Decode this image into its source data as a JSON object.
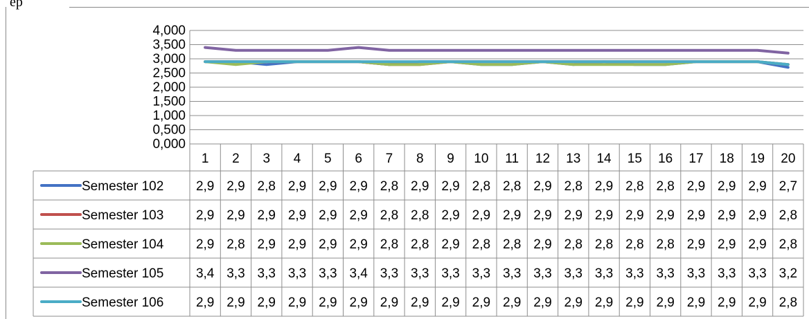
{
  "header_fragment": "ep",
  "chart_data": {
    "type": "line",
    "title": "",
    "xlabel": "",
    "ylabel": "",
    "ylim": [
      0,
      4
    ],
    "y_ticks": [
      "4,000",
      "3,500",
      "3,000",
      "2,500",
      "2,000",
      "1,500",
      "1,000",
      "0,500",
      "0,000"
    ],
    "grid": true,
    "legend": "data-table-below",
    "categories": [
      "1",
      "2",
      "3",
      "4",
      "5",
      "6",
      "7",
      "8",
      "9",
      "10",
      "11",
      "12",
      "13",
      "14",
      "15",
      "16",
      "17",
      "18",
      "19",
      "20"
    ],
    "series": [
      {
        "name": "Semester 102",
        "color": "#4472C4",
        "labels": [
          "2,9",
          "2,9",
          "2,8",
          "2,9",
          "2,9",
          "2,9",
          "2,8",
          "2,9",
          "2,9",
          "2,8",
          "2,8",
          "2,9",
          "2,8",
          "2,9",
          "2,8",
          "2,8",
          "2,9",
          "2,9",
          "2,9",
          "2,7"
        ],
        "values": [
          2.9,
          2.9,
          2.8,
          2.9,
          2.9,
          2.9,
          2.8,
          2.9,
          2.9,
          2.8,
          2.8,
          2.9,
          2.8,
          2.9,
          2.8,
          2.8,
          2.9,
          2.9,
          2.9,
          2.7
        ]
      },
      {
        "name": "Semester 103",
        "color": "#C0504D",
        "labels": [
          "2,9",
          "2,9",
          "2,9",
          "2,9",
          "2,9",
          "2,9",
          "2,8",
          "2,8",
          "2,9",
          "2,9",
          "2,9",
          "2,9",
          "2,9",
          "2,9",
          "2,9",
          "2,9",
          "2,9",
          "2,9",
          "2,9",
          "2,8"
        ],
        "values": [
          2.9,
          2.9,
          2.9,
          2.9,
          2.9,
          2.9,
          2.8,
          2.8,
          2.9,
          2.9,
          2.9,
          2.9,
          2.9,
          2.9,
          2.9,
          2.9,
          2.9,
          2.9,
          2.9,
          2.8
        ]
      },
      {
        "name": "Semester 104",
        "color": "#9BBB59",
        "labels": [
          "2,9",
          "2,8",
          "2,9",
          "2,9",
          "2,9",
          "2,9",
          "2,8",
          "2,8",
          "2,9",
          "2,8",
          "2,8",
          "2,9",
          "2,8",
          "2,8",
          "2,8",
          "2,8",
          "2,9",
          "2,9",
          "2,9",
          "2,8"
        ],
        "values": [
          2.9,
          2.8,
          2.9,
          2.9,
          2.9,
          2.9,
          2.8,
          2.8,
          2.9,
          2.8,
          2.8,
          2.9,
          2.8,
          2.8,
          2.8,
          2.8,
          2.9,
          2.9,
          2.9,
          2.8
        ]
      },
      {
        "name": "Semester 105",
        "color": "#8064A2",
        "labels": [
          "3,4",
          "3,3",
          "3,3",
          "3,3",
          "3,3",
          "3,4",
          "3,3",
          "3,3",
          "3,3",
          "3,3",
          "3,3",
          "3,3",
          "3,3",
          "3,3",
          "3,3",
          "3,3",
          "3,3",
          "3,3",
          "3,3",
          "3,2"
        ],
        "values": [
          3.4,
          3.3,
          3.3,
          3.3,
          3.3,
          3.4,
          3.3,
          3.3,
          3.3,
          3.3,
          3.3,
          3.3,
          3.3,
          3.3,
          3.3,
          3.3,
          3.3,
          3.3,
          3.3,
          3.2
        ]
      },
      {
        "name": "Semester 106",
        "color": "#4BACC6",
        "labels": [
          "2,9",
          "2,9",
          "2,9",
          "2,9",
          "2,9",
          "2,9",
          "2,9",
          "2,9",
          "2,9",
          "2,9",
          "2,9",
          "2,9",
          "2,9",
          "2,9",
          "2,9",
          "2,9",
          "2,9",
          "2,9",
          "2,9",
          "2,8"
        ],
        "values": [
          2.9,
          2.9,
          2.9,
          2.9,
          2.9,
          2.9,
          2.9,
          2.9,
          2.9,
          2.9,
          2.9,
          2.9,
          2.9,
          2.9,
          2.9,
          2.9,
          2.9,
          2.9,
          2.9,
          2.8
        ]
      }
    ]
  }
}
